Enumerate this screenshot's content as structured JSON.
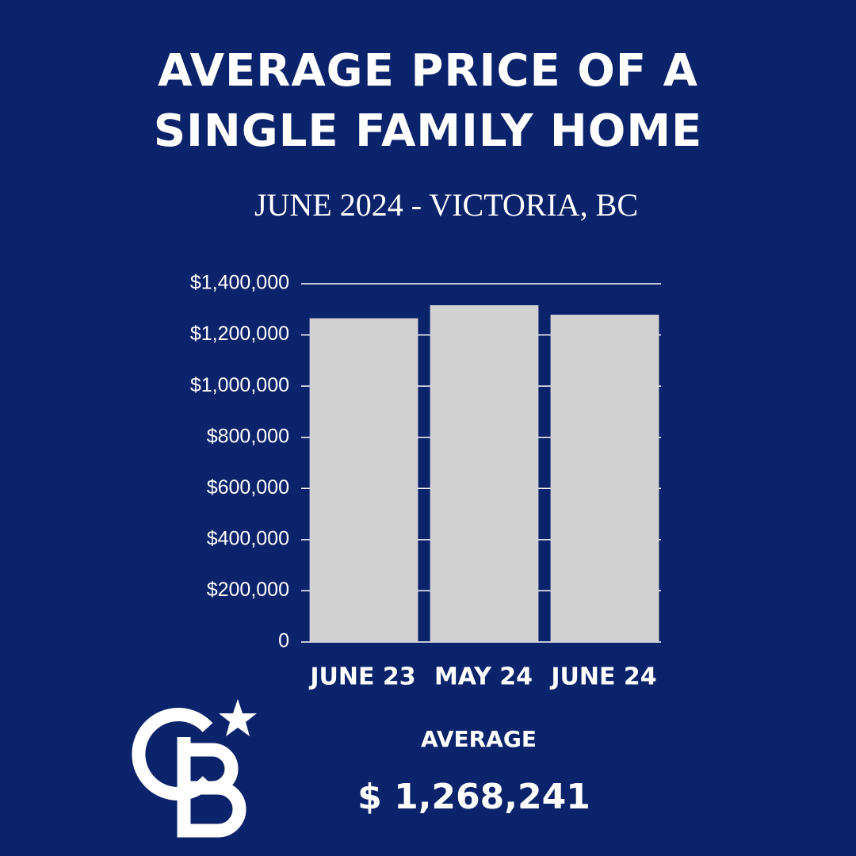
{
  "chart_data": {
    "type": "bar",
    "title": "AVERAGE PRICE OF A SINGLE FAMILY HOME",
    "subtitle": "JUNE 2024 - VICTORIA, BC",
    "categories": [
      "JUNE 23",
      "MAY 24",
      "JUNE 24"
    ],
    "values": [
      1265000,
      1316000,
      1279000
    ],
    "color": "#d3d2d3",
    "ylim": [
      0,
      1400000
    ],
    "yticks": [
      0,
      {
        "value": 200000,
        "label": "$200,000"
      },
      {
        "value": 400000,
        "label": "$400,000"
      },
      {
        "value": 600000,
        "label": "$600,000"
      },
      {
        "value": 800000,
        "label": "$800,000"
      },
      {
        "value": 1000000,
        "label": "$1,000,000"
      },
      {
        "value": 1200000,
        "label": "$1,200,000"
      },
      {
        "value": 1400000,
        "label": "$1,400,000"
      }
    ],
    "grid": true,
    "annotations": [
      "AVERAGE",
      "$ 1,268,241"
    ]
  }
}
